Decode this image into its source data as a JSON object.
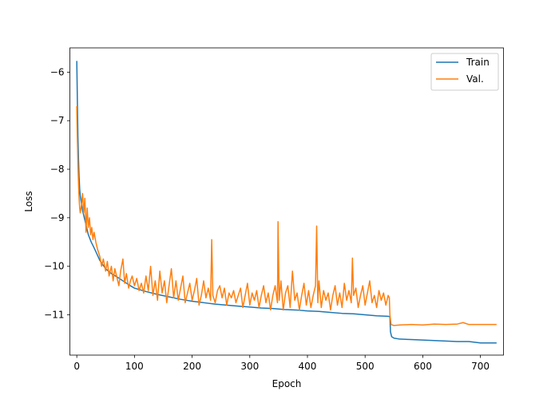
{
  "chart_data": {
    "type": "line",
    "title": "",
    "xlabel": "Epoch",
    "ylabel": "Loss",
    "xlim": [
      -12,
      740
    ],
    "ylim": [
      -11.83,
      -5.5
    ],
    "xticks": [
      0,
      100,
      200,
      300,
      400,
      500,
      600,
      700
    ],
    "yticks": [
      -11,
      -10,
      -9,
      -8,
      -7,
      -6
    ],
    "grid": false,
    "legend_position": "top-right",
    "series": [
      {
        "name": "Train",
        "color": "#1f77b4",
        "x": [
          0,
          1,
          2,
          3,
          4,
          5,
          6,
          8,
          10,
          12,
          15,
          18,
          20,
          25,
          30,
          35,
          40,
          50,
          60,
          70,
          80,
          90,
          100,
          120,
          140,
          160,
          180,
          200,
          220,
          240,
          260,
          280,
          300,
          320,
          340,
          360,
          380,
          400,
          420,
          440,
          460,
          480,
          500,
          520,
          540,
          543,
          544,
          546,
          550,
          560,
          580,
          600,
          620,
          640,
          660,
          680,
          700,
          720,
          728
        ],
        "y": [
          -5.77,
          -6.6,
          -7.3,
          -7.8,
          -8.15,
          -8.4,
          -8.55,
          -8.7,
          -8.85,
          -8.95,
          -9.1,
          -9.25,
          -9.35,
          -9.5,
          -9.62,
          -9.75,
          -9.88,
          -10.05,
          -10.15,
          -10.22,
          -10.3,
          -10.38,
          -10.45,
          -10.52,
          -10.58,
          -10.63,
          -10.68,
          -10.72,
          -10.75,
          -10.78,
          -10.8,
          -10.82,
          -10.84,
          -10.86,
          -10.87,
          -10.89,
          -10.9,
          -10.92,
          -10.93,
          -10.95,
          -10.97,
          -10.98,
          -11.0,
          -11.02,
          -11.03,
          -11.04,
          -11.35,
          -11.45,
          -11.48,
          -11.5,
          -11.51,
          -11.52,
          -11.53,
          -11.54,
          -11.55,
          -11.55,
          -11.58,
          -11.58,
          -11.58
        ]
      },
      {
        "name": "Val.",
        "color": "#ff7f0e",
        "x": [
          0,
          1,
          2,
          3,
          4,
          5,
          6,
          8,
          10,
          12,
          14,
          16,
          18,
          20,
          22,
          24,
          26,
          28,
          30,
          33,
          36,
          40,
          43,
          46,
          50,
          53,
          56,
          60,
          63,
          66,
          70,
          73,
          76,
          80,
          83,
          86,
          90,
          93,
          96,
          100,
          104,
          108,
          112,
          116,
          120,
          124,
          128,
          132,
          136,
          140,
          144,
          148,
          152,
          156,
          160,
          164,
          168,
          172,
          176,
          180,
          184,
          188,
          192,
          196,
          200,
          204,
          208,
          212,
          216,
          220,
          224,
          228,
          232,
          234,
          236,
          240,
          244,
          248,
          252,
          256,
          260,
          264,
          268,
          272,
          276,
          280,
          284,
          288,
          292,
          296,
          300,
          304,
          308,
          312,
          316,
          320,
          324,
          328,
          332,
          336,
          340,
          344,
          348,
          349,
          351,
          354,
          358,
          362,
          366,
          370,
          374,
          378,
          382,
          386,
          390,
          394,
          398,
          402,
          406,
          410,
          414,
          416,
          418,
          420,
          424,
          428,
          432,
          436,
          440,
          444,
          448,
          452,
          456,
          460,
          464,
          468,
          472,
          476,
          478,
          480,
          484,
          488,
          492,
          496,
          500,
          504,
          508,
          512,
          516,
          520,
          524,
          528,
          532,
          536,
          540,
          542,
          543,
          545,
          550,
          560,
          580,
          600,
          620,
          640,
          660,
          670,
          680,
          700,
          720,
          728
        ],
        "y": [
          -6.7,
          -7.4,
          -7.9,
          -8.3,
          -8.6,
          -8.8,
          -8.9,
          -8.75,
          -8.5,
          -8.9,
          -8.6,
          -9.3,
          -8.8,
          -9.2,
          -9.0,
          -9.35,
          -9.2,
          -9.45,
          -9.3,
          -9.5,
          -9.65,
          -9.8,
          -10.0,
          -9.85,
          -10.1,
          -9.9,
          -10.2,
          -10.0,
          -10.3,
          -10.05,
          -10.25,
          -10.4,
          -10.1,
          -9.85,
          -10.35,
          -10.15,
          -10.45,
          -10.3,
          -10.2,
          -10.4,
          -10.25,
          -10.5,
          -10.35,
          -10.55,
          -10.2,
          -10.5,
          -10.0,
          -10.6,
          -10.3,
          -10.7,
          -10.1,
          -10.55,
          -10.3,
          -10.75,
          -10.4,
          -10.05,
          -10.65,
          -10.3,
          -10.7,
          -10.45,
          -10.2,
          -10.75,
          -10.55,
          -10.35,
          -10.7,
          -10.5,
          -10.25,
          -10.8,
          -10.6,
          -10.3,
          -10.65,
          -10.45,
          -10.7,
          -9.45,
          -10.6,
          -10.75,
          -10.5,
          -10.4,
          -10.65,
          -10.45,
          -10.8,
          -10.55,
          -10.65,
          -10.5,
          -10.75,
          -10.6,
          -10.45,
          -10.85,
          -10.6,
          -10.35,
          -10.8,
          -10.55,
          -10.7,
          -10.5,
          -10.85,
          -10.6,
          -10.4,
          -10.75,
          -10.55,
          -10.9,
          -10.6,
          -10.4,
          -10.75,
          -9.08,
          -10.7,
          -10.3,
          -10.9,
          -10.55,
          -10.4,
          -10.85,
          -10.1,
          -10.7,
          -10.55,
          -10.9,
          -10.6,
          -10.35,
          -10.8,
          -10.5,
          -10.85,
          -10.6,
          -10.4,
          -9.17,
          -10.75,
          -10.3,
          -10.85,
          -10.5,
          -10.7,
          -10.55,
          -10.9,
          -10.6,
          -10.4,
          -10.8,
          -10.55,
          -10.85,
          -10.35,
          -10.7,
          -10.5,
          -10.75,
          -9.83,
          -10.6,
          -10.45,
          -10.85,
          -10.6,
          -10.4,
          -10.8,
          -10.55,
          -10.3,
          -10.75,
          -10.6,
          -10.85,
          -10.5,
          -10.7,
          -10.55,
          -10.8,
          -10.6,
          -10.65,
          -11.0,
          -11.2,
          -11.22,
          -11.21,
          -11.2,
          -11.21,
          -11.19,
          -11.2,
          -11.19,
          -11.16,
          -11.2,
          -11.2,
          -11.2,
          -11.2
        ]
      }
    ]
  }
}
